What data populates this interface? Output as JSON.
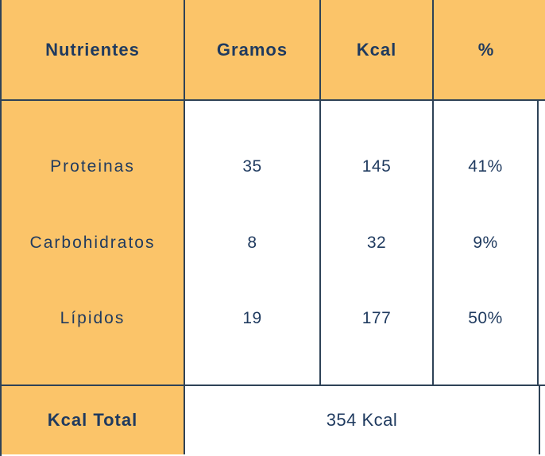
{
  "colors": {
    "accent-orange": "#FBC469",
    "border-navy": "#2E4257",
    "text-navy": "#1F3A5F",
    "cell-white": "#FFFFFF"
  },
  "table": {
    "headers": {
      "nutrientes": "Nutrientes",
      "gramos": "Gramos",
      "kcal": "Kcal",
      "pct": "%"
    },
    "rows": [
      {
        "label": "Proteinas",
        "gramos": "35",
        "kcal": "145",
        "pct": "41%"
      },
      {
        "label": "Carbohidratos",
        "gramos": "8",
        "kcal": "32",
        "pct": "9%"
      },
      {
        "label": "Lípidos",
        "gramos": "19",
        "kcal": "177",
        "pct": "50%"
      }
    ],
    "footer": {
      "label": "Kcal Total",
      "value": "354 Kcal"
    }
  },
  "chart_data": {
    "type": "table",
    "columns": [
      "Nutrientes",
      "Gramos",
      "Kcal",
      "%"
    ],
    "rows": [
      [
        "Proteinas",
        35,
        145,
        "41%"
      ],
      [
        "Carbohidratos",
        8,
        32,
        "9%"
      ],
      [
        "Lípidos",
        19,
        177,
        "50%"
      ]
    ],
    "footer_label": "Kcal Total",
    "total": "354 Kcal"
  }
}
